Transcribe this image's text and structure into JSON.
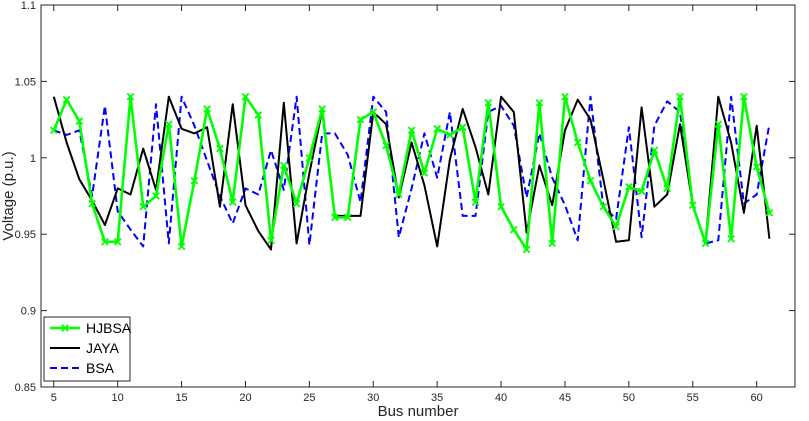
{
  "chart_data": {
    "type": "line",
    "xlabel": "Bus number",
    "ylabel": "Voltage (p.u.)",
    "xlim": [
      4,
      63
    ],
    "ylim": [
      0.85,
      1.1
    ],
    "xticks": [
      5,
      10,
      15,
      20,
      25,
      30,
      35,
      40,
      45,
      50,
      55,
      60
    ],
    "yticks": [
      0.85,
      0.9,
      0.95,
      1,
      1.05,
      1.1
    ],
    "x": [
      5,
      6,
      7,
      8,
      9,
      10,
      11,
      12,
      13,
      14,
      15,
      16,
      17,
      18,
      19,
      20,
      21,
      22,
      23,
      24,
      25,
      26,
      27,
      28,
      29,
      30,
      31,
      32,
      33,
      34,
      35,
      36,
      37,
      38,
      39,
      40,
      41,
      42,
      43,
      44,
      45,
      46,
      47,
      48,
      49,
      50,
      51,
      52,
      53,
      54,
      55,
      56,
      57,
      58,
      59,
      60,
      61
    ],
    "grid": false,
    "legend": "bottom-left",
    "series": [
      {
        "name": "HJBSA",
        "color": "#00ff00",
        "style": "solid",
        "marker": "x",
        "values": [
          1.018,
          1.038,
          1.024,
          0.97,
          0.945,
          0.945,
          1.04,
          0.968,
          0.975,
          1.022,
          0.942,
          0.985,
          1.032,
          1.006,
          0.971,
          1.04,
          1.028,
          0.946,
          0.995,
          0.97,
          1.0,
          1.032,
          0.961,
          0.961,
          1.025,
          1.03,
          1.008,
          0.976,
          1.018,
          0.99,
          1.019,
          1.015,
          1.02,
          0.971,
          1.036,
          0.968,
          0.953,
          0.94,
          1.036,
          0.944,
          1.04,
          1.01,
          0.985,
          0.968,
          0.955,
          0.981,
          0.978,
          1.005,
          0.98,
          1.04,
          0.969,
          0.944,
          1.022,
          0.947,
          1.04,
          0.994,
          0.964
        ]
      },
      {
        "name": "JAYA",
        "color": "#000000",
        "style": "solid",
        "marker": "none",
        "values": [
          1.04,
          1.01,
          0.986,
          0.972,
          0.956,
          0.98,
          0.976,
          1.006,
          0.979,
          1.04,
          1.019,
          1.016,
          1.02,
          0.968,
          1.035,
          0.969,
          0.952,
          0.94,
          1.036,
          0.944,
          0.99,
          1.031,
          0.962,
          0.962,
          0.962,
          1.03,
          1.022,
          0.974,
          1.01,
          0.982,
          0.942,
          0.999,
          1.032,
          1.007,
          0.976,
          1.04,
          1.03,
          0.951,
          0.995,
          0.969,
          1.018,
          1.038,
          1.025,
          0.986,
          0.945,
          0.946,
          1.033,
          0.968,
          0.976,
          1.022,
          0.969,
          0.944,
          1.04,
          1.01,
          0.964,
          1.021,
          0.947
        ]
      },
      {
        "name": "BSA",
        "color": "#0000ff",
        "style": "dashed",
        "marker": "none",
        "values": [
          1.018,
          1.015,
          1.018,
          0.975,
          1.034,
          0.965,
          0.953,
          0.942,
          1.035,
          0.944,
          1.04,
          1.021,
          0.998,
          0.975,
          0.957,
          0.98,
          0.976,
          1.005,
          0.979,
          1.04,
          0.943,
          1.016,
          1.016,
          1.002,
          0.971,
          1.04,
          1.03,
          0.948,
          0.98,
          1.016,
          0.987,
          1.03,
          0.962,
          0.962,
          1.03,
          1.034,
          1.021,
          0.974,
          1.016,
          0.987,
          0.969,
          0.946,
          1.04,
          0.968,
          0.96,
          1.02,
          0.948,
          1.021,
          1.037,
          1.03,
          0.969,
          0.944,
          0.946,
          1.04,
          0.97,
          0.976,
          1.022
        ]
      }
    ]
  }
}
